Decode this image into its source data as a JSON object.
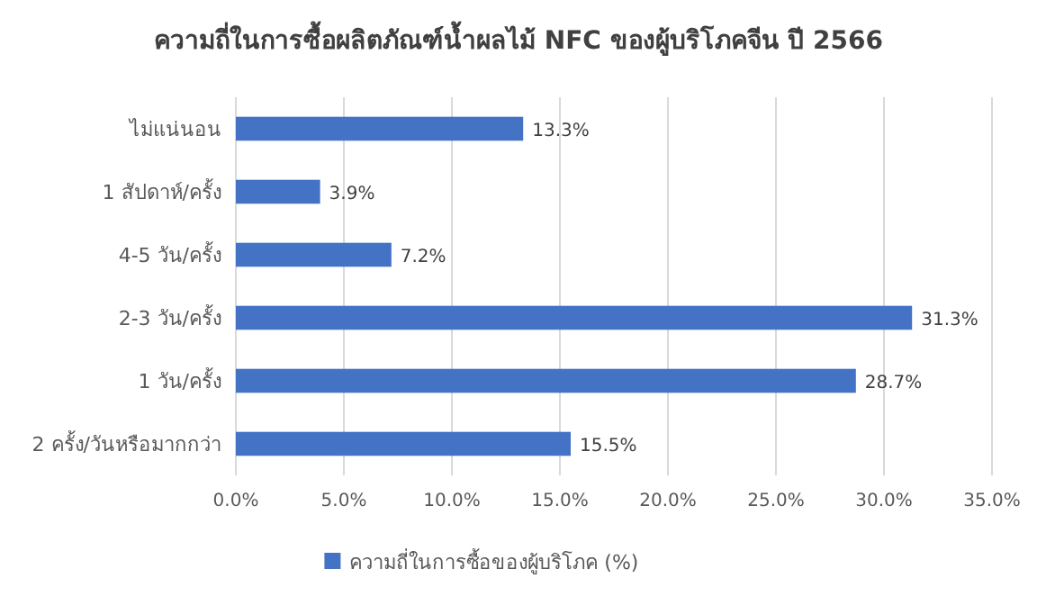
{
  "chart_data": {
    "type": "bar",
    "orientation": "horizontal",
    "title": "ความถี่ในการซื้อผลิตภัณฑ์น้ำผลไม้  NFC ของผู้บริโภคจีน ปี 2566",
    "categories": [
      "ไม่แน่นอน",
      "1 สัปดาห์/ครั้ง",
      "4-5 วัน/ครั้ง",
      "2-3 วัน/ครั้ง",
      "1 วัน/ครั้ง",
      "2 ครั้ง/วันหรือมากกว่า"
    ],
    "series": [
      {
        "name": "ความถี่ในการซื้อของผู้บริโภค (%)",
        "color": "#4472c4",
        "values": [
          13.3,
          3.9,
          7.2,
          31.3,
          28.7,
          15.5
        ],
        "value_labels": [
          "13.3%",
          "3.9%",
          "7.2%",
          "31.3%",
          "28.7%",
          "15.5%"
        ]
      }
    ],
    "xlim": [
      0,
      35
    ],
    "xticks": [
      {
        "value": 0,
        "label": "0.0%"
      },
      {
        "value": 5,
        "label": "5.0%"
      },
      {
        "value": 10,
        "label": "10.0%"
      },
      {
        "value": 15,
        "label": "15.0%"
      },
      {
        "value": 20,
        "label": "20.0%"
      },
      {
        "value": 25,
        "label": "25.0%"
      },
      {
        "value": 30,
        "label": "30.0%"
      },
      {
        "value": 35,
        "label": "35.0%"
      }
    ],
    "grid": "x",
    "legend": "bottom"
  }
}
